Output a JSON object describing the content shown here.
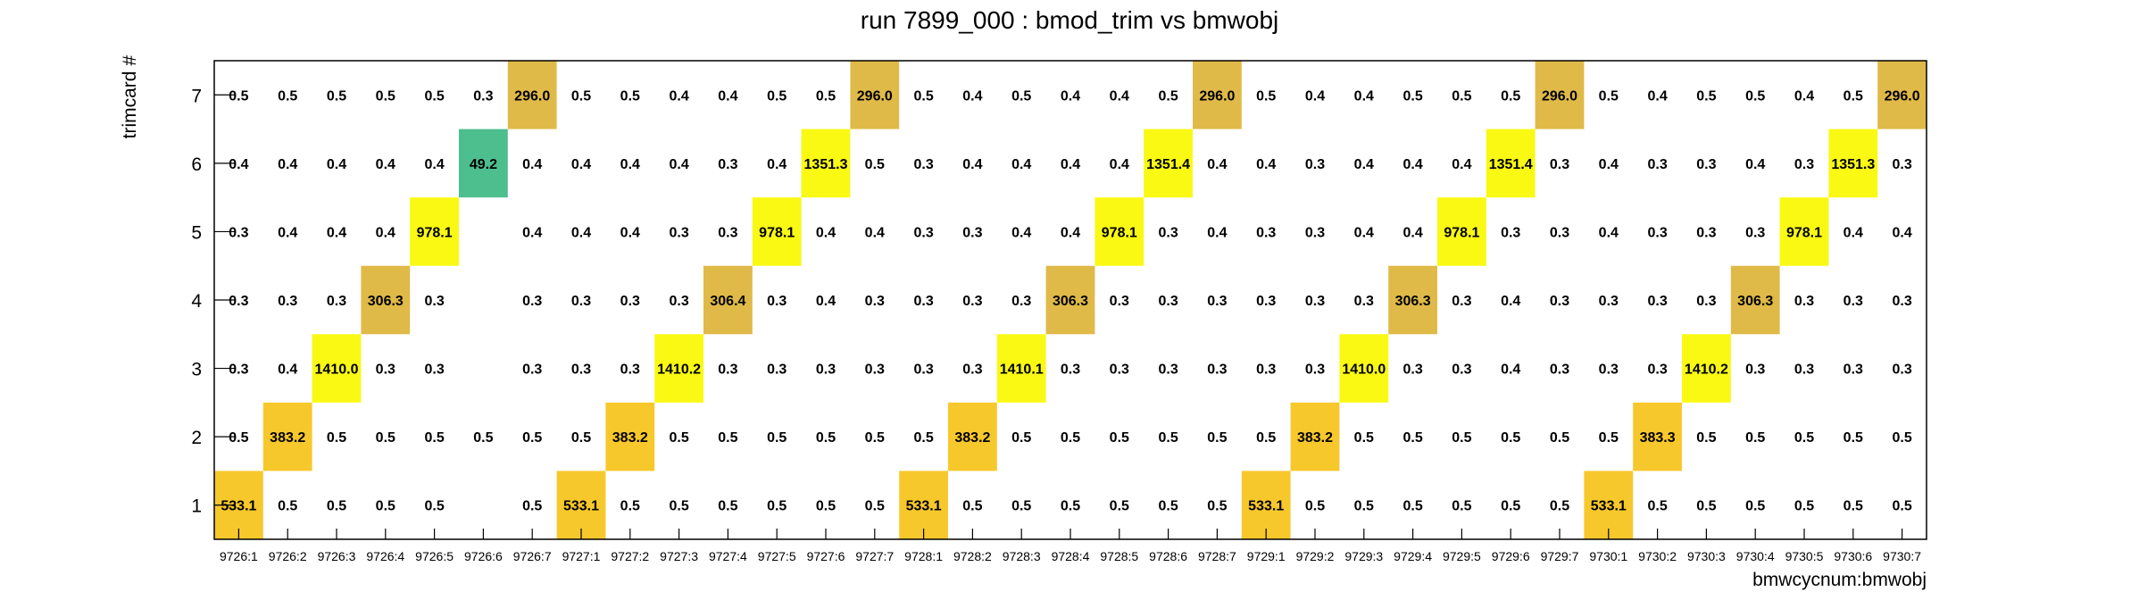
{
  "chart_data": {
    "type": "heatmap",
    "title": "run 7899_000 : bmod_trim vs bmwobj",
    "xlabel": "bmwcycnum:bmwobj",
    "ylabel": "trimcard #",
    "categories": [
      "9726:1",
      "9726:2",
      "9726:3",
      "9726:4",
      "9726:5",
      "9726:6",
      "9726:7",
      "9727:1",
      "9727:2",
      "9727:3",
      "9727:4",
      "9727:5",
      "9727:6",
      "9727:7",
      "9728:1",
      "9728:2",
      "9728:3",
      "9728:4",
      "9728:5",
      "9728:6",
      "9728:7",
      "9729:1",
      "9729:2",
      "9729:3",
      "9729:4",
      "9729:5",
      "9729:6",
      "9729:7",
      "9730:1",
      "9730:2",
      "9730:3",
      "9730:4",
      "9730:5",
      "9730:6",
      "9730:7"
    ],
    "y_categories": [
      "1",
      "2",
      "3",
      "4",
      "5",
      "6",
      "7"
    ],
    "rows": [
      {
        "y": "1",
        "values": [
          "533.1",
          "0.5",
          "0.5",
          "0.5",
          "0.5",
          null,
          "0.5",
          "533.1",
          "0.5",
          "0.5",
          "0.5",
          "0.5",
          "0.5",
          "0.5",
          "533.1",
          "0.5",
          "0.5",
          "0.5",
          "0.5",
          "0.5",
          "0.5",
          "533.1",
          "0.5",
          "0.5",
          "0.5",
          "0.5",
          "0.5",
          "0.5",
          "533.1",
          "0.5",
          "0.5",
          "0.5",
          "0.5",
          "0.5",
          "0.5"
        ]
      },
      {
        "y": "2",
        "values": [
          "0.5",
          "383.2",
          "0.5",
          "0.5",
          "0.5",
          "0.5",
          "0.5",
          "0.5",
          "383.2",
          "0.5",
          "0.5",
          "0.5",
          "0.5",
          "0.5",
          "0.5",
          "383.2",
          "0.5",
          "0.5",
          "0.5",
          "0.5",
          "0.5",
          "0.5",
          "383.2",
          "0.5",
          "0.5",
          "0.5",
          "0.5",
          "0.5",
          "0.5",
          "383.3",
          "0.5",
          "0.5",
          "0.5",
          "0.5",
          "0.5"
        ]
      },
      {
        "y": "3",
        "values": [
          "0.3",
          "0.4",
          "1410.0",
          "0.3",
          "0.3",
          null,
          "0.3",
          "0.3",
          "0.3",
          "1410.2",
          "0.3",
          "0.3",
          "0.3",
          "0.3",
          "0.3",
          "0.3",
          "1410.1",
          "0.3",
          "0.3",
          "0.3",
          "0.3",
          "0.3",
          "0.3",
          "1410.0",
          "0.3",
          "0.3",
          "0.4",
          "0.3",
          "0.3",
          "0.3",
          "1410.2",
          "0.3",
          "0.3",
          "0.3",
          "0.3"
        ]
      },
      {
        "y": "4",
        "values": [
          "0.3",
          "0.3",
          "0.3",
          "306.3",
          "0.3",
          null,
          "0.3",
          "0.3",
          "0.3",
          "0.3",
          "306.4",
          "0.3",
          "0.4",
          "0.3",
          "0.3",
          "0.3",
          "0.3",
          "306.3",
          "0.3",
          "0.3",
          "0.3",
          "0.3",
          "0.3",
          "0.3",
          "306.3",
          "0.3",
          "0.4",
          "0.3",
          "0.3",
          "0.3",
          "0.3",
          "306.3",
          "0.3",
          "0.3",
          "0.3"
        ]
      },
      {
        "y": "5",
        "values": [
          "0.3",
          "0.4",
          "0.4",
          "0.4",
          "978.1",
          null,
          "0.4",
          "0.4",
          "0.4",
          "0.3",
          "0.3",
          "978.1",
          "0.4",
          "0.4",
          "0.3",
          "0.3",
          "0.4",
          "0.4",
          "978.1",
          "0.3",
          "0.4",
          "0.3",
          "0.3",
          "0.4",
          "0.4",
          "978.1",
          "0.3",
          "0.3",
          "0.4",
          "0.3",
          "0.3",
          "0.3",
          "978.1",
          "0.4",
          "0.4"
        ]
      },
      {
        "y": "6",
        "values": [
          "0.4",
          "0.4",
          "0.4",
          "0.4",
          "0.4",
          "49.2",
          "0.4",
          "0.4",
          "0.4",
          "0.4",
          "0.3",
          "0.4",
          "1351.3",
          "0.5",
          "0.3",
          "0.4",
          "0.4",
          "0.4",
          "0.4",
          "1351.4",
          "0.4",
          "0.4",
          "0.3",
          "0.4",
          "0.4",
          "0.4",
          "1351.4",
          "0.3",
          "0.4",
          "0.3",
          "0.3",
          "0.4",
          "0.3",
          "1351.3",
          "0.3"
        ]
      },
      {
        "y": "7",
        "values": [
          "0.5",
          "0.5",
          "0.5",
          "0.5",
          "0.5",
          "0.3",
          "296.0",
          "0.5",
          "0.5",
          "0.4",
          "0.4",
          "0.5",
          "0.5",
          "296.0",
          "0.5",
          "0.4",
          "0.5",
          "0.4",
          "0.4",
          "0.5",
          "296.0",
          "0.5",
          "0.4",
          "0.4",
          "0.5",
          "0.5",
          "0.5",
          "296.0",
          "0.5",
          "0.4",
          "0.5",
          "0.5",
          "0.4",
          "0.5",
          "296.0"
        ]
      }
    ],
    "colors": {
      "1410": "#f9f914",
      "1351": "#f9f914",
      "978": "#f9f914",
      "533": "#f7c82c",
      "383": "#f7c82c",
      "306": "#e0ba48",
      "296": "#e0ba48",
      "49": "#4dbe8e",
      "small": "#ffffff"
    },
    "grid": false,
    "legend": "none"
  }
}
